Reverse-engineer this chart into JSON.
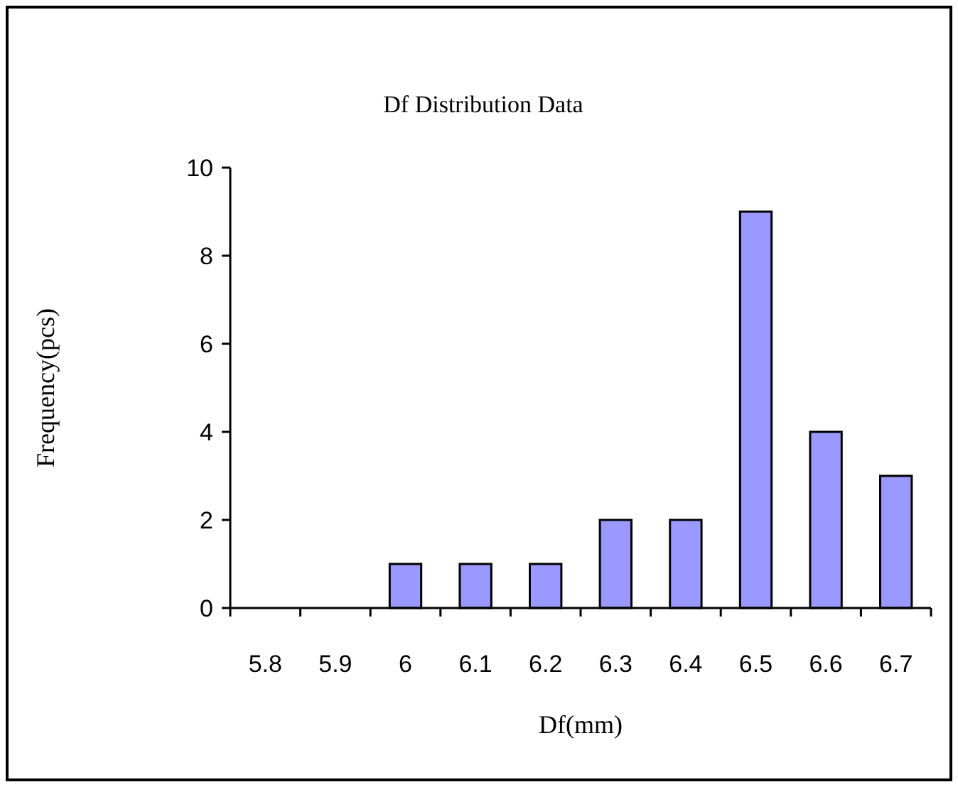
{
  "chart_data": {
    "type": "bar",
    "title": "Df Distribution Data",
    "xlabel": "Df(mm)",
    "ylabel": "Frequency(pcs)",
    "categories": [
      "5.8",
      "5.9",
      "6",
      "6.1",
      "6.2",
      "6.3",
      "6.4",
      "6.5",
      "6.6",
      "6.7"
    ],
    "values": [
      0,
      0,
      1,
      1,
      1,
      2,
      2,
      9,
      4,
      3
    ],
    "color": "#9999ff",
    "ylim": [
      0,
      10
    ],
    "yticks": [
      0,
      2,
      4,
      6,
      8,
      10
    ]
  }
}
